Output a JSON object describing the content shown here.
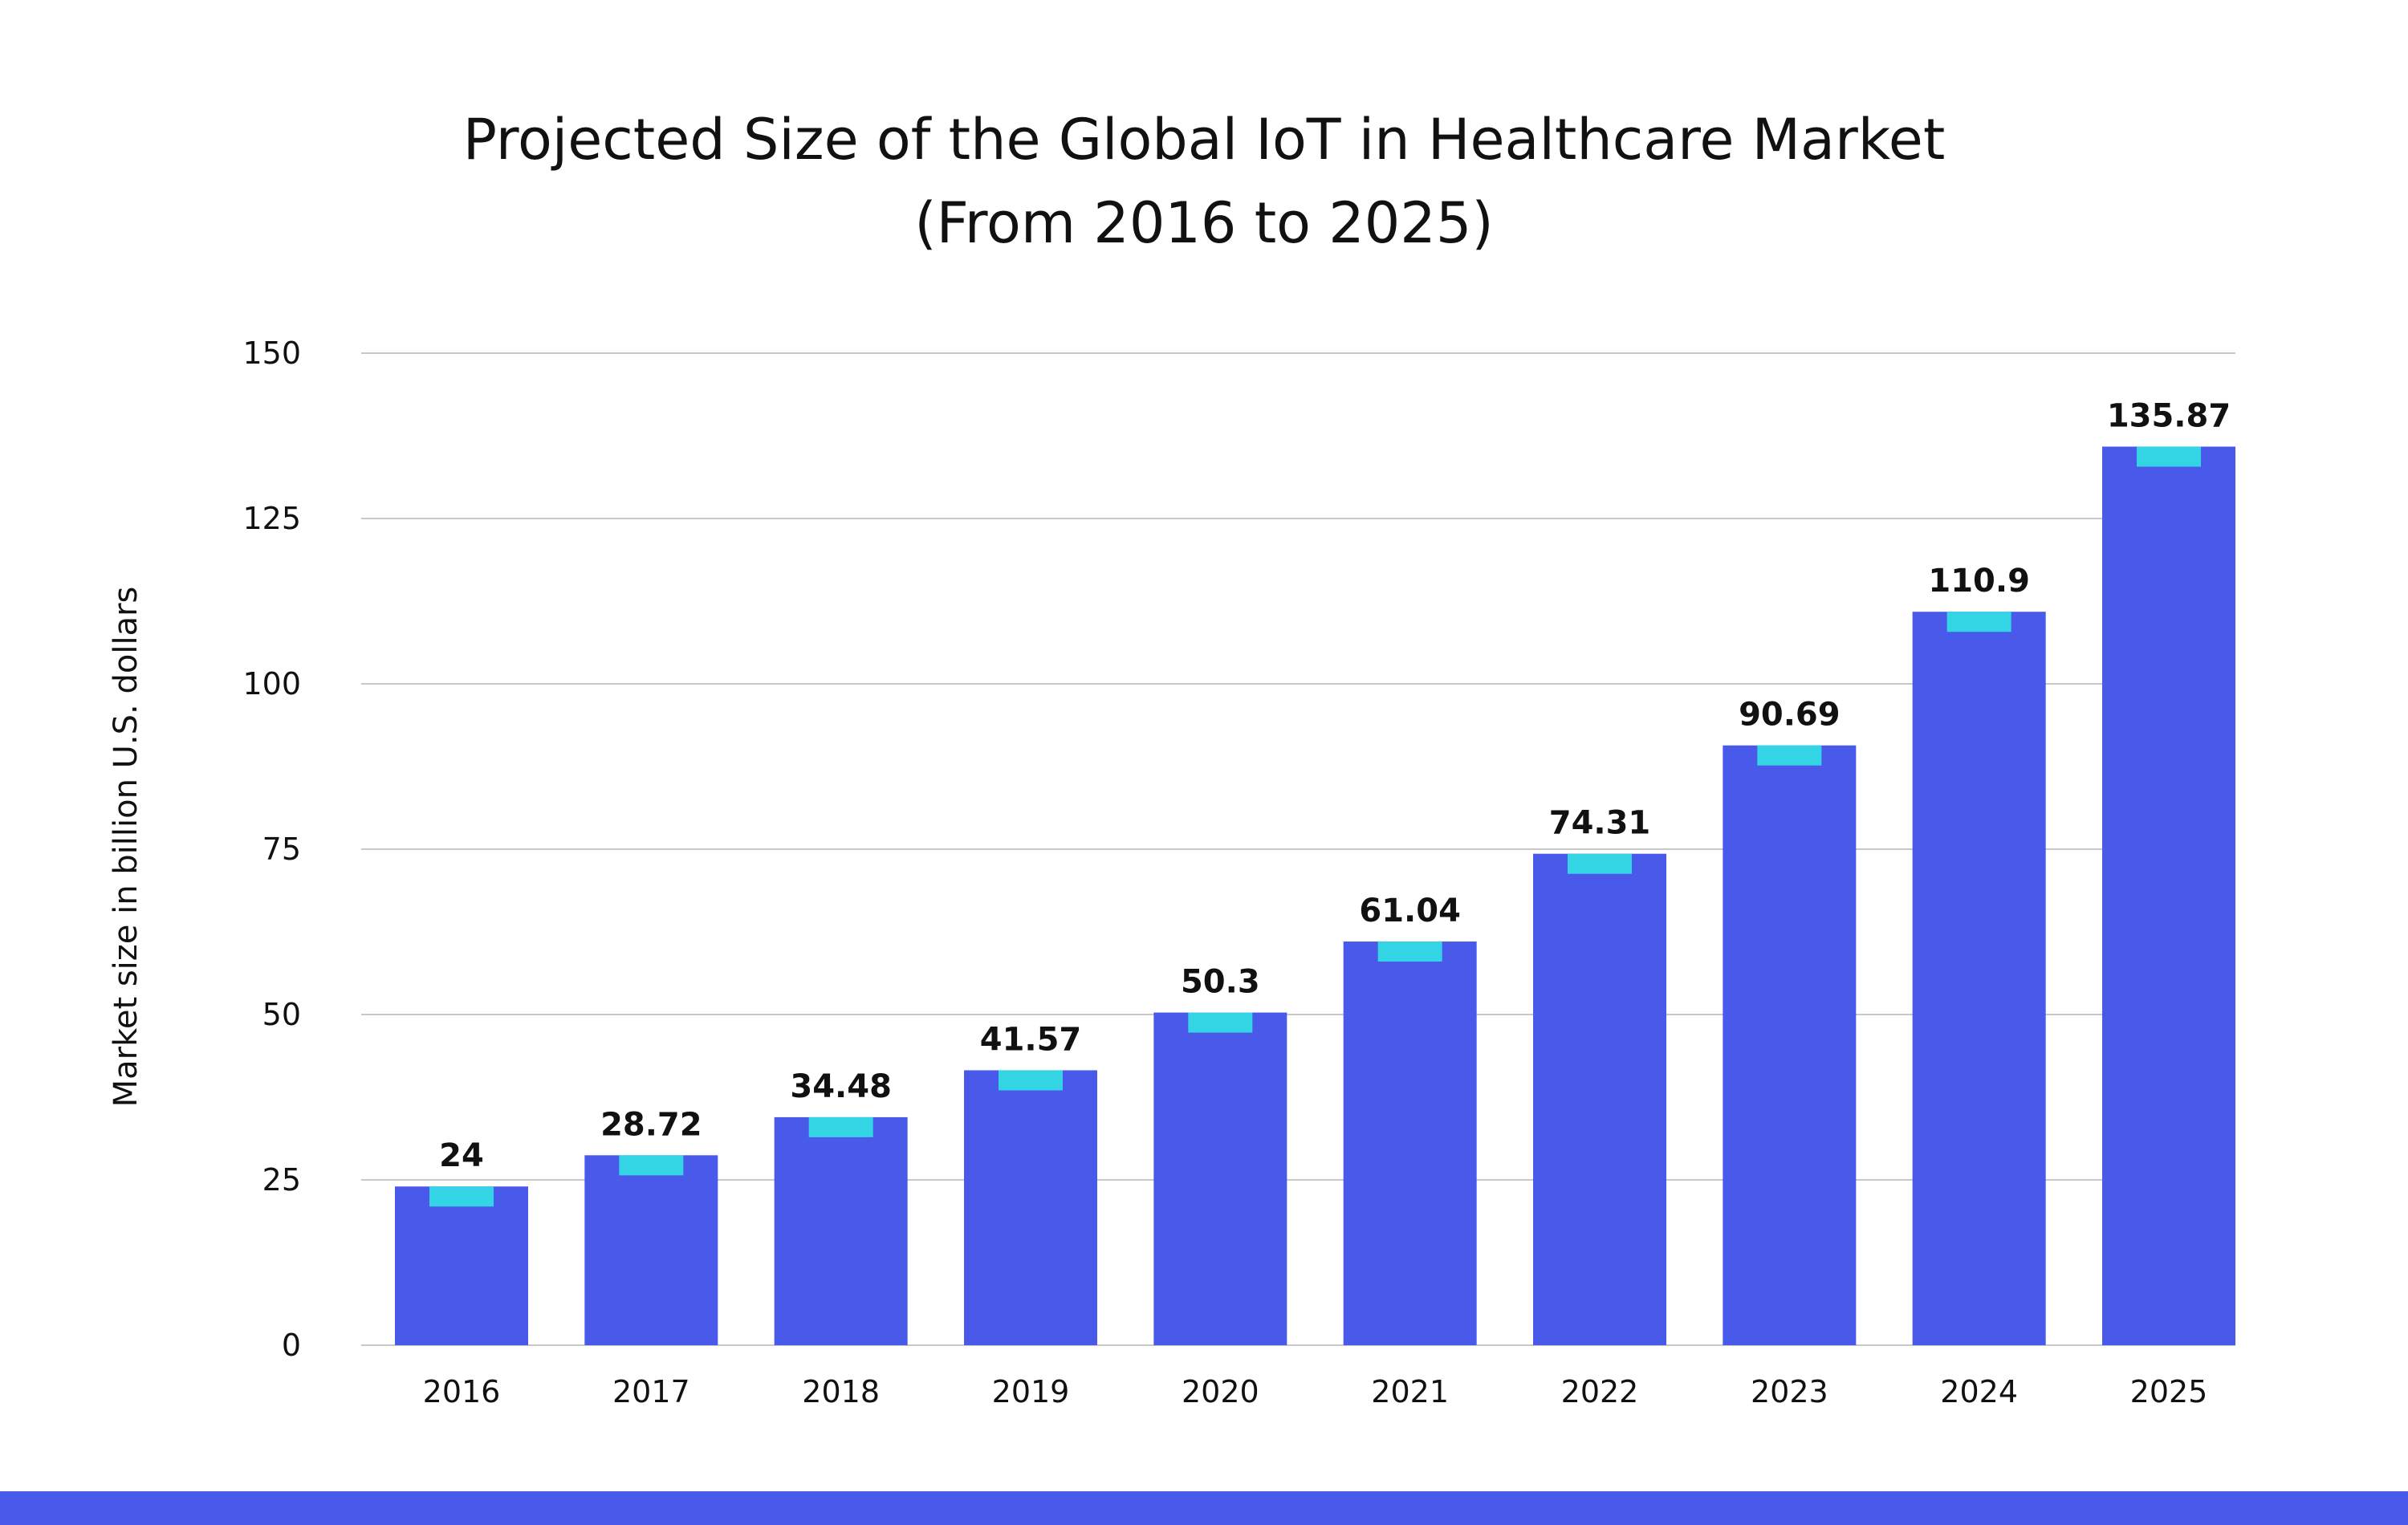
{
  "colors": {
    "bar": "#4959EA",
    "bar_cap": "#33D4E4",
    "gridline": "#C8C8C8",
    "footer": "#4959EA",
    "text": "#111111"
  },
  "chart_data": {
    "type": "bar",
    "title": "Projected Size of the Global IoT in Healthcare Market",
    "subtitle": "(From 2016 to 2025)",
    "xlabel": "",
    "ylabel": "Market size in billion U.S. dollars",
    "categories": [
      "2016",
      "2017",
      "2018",
      "2019",
      "2020",
      "2021",
      "2022",
      "2023",
      "2024",
      "2025"
    ],
    "values": [
      24,
      28.72,
      34.48,
      41.57,
      50.3,
      61.04,
      74.31,
      90.69,
      110.9,
      135.87
    ],
    "data_labels": [
      "24",
      "28.72",
      "34.48",
      "41.57",
      "50.3",
      "61.04",
      "74.31",
      "90.69",
      "110.9",
      "135.87"
    ],
    "ylim": [
      0,
      150
    ],
    "yticks": [
      0,
      25,
      50,
      75,
      100,
      125,
      150
    ],
    "ytick_labels": [
      "0",
      "25",
      "50",
      "75",
      "100",
      "125",
      "150"
    ],
    "grid": true,
    "legend": "none"
  }
}
